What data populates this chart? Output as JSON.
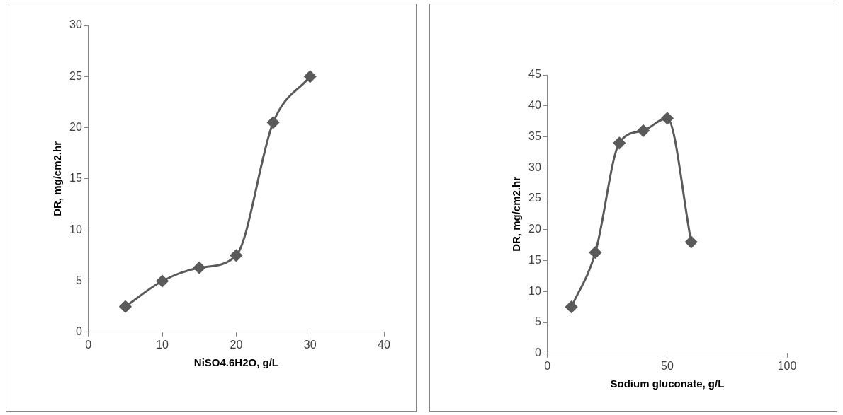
{
  "chart_data": [
    {
      "type": "line",
      "xlabel": "NiSO4.6H2O, g/L",
      "ylabel": "DR, mg/cm2.hr",
      "x": [
        5,
        10,
        15,
        20,
        25,
        30
      ],
      "series": [
        {
          "color": "#5a5a5a",
          "values": [
            2.5,
            5,
            6.3,
            7.5,
            20.5,
            25
          ]
        }
      ],
      "xlim": [
        0,
        40
      ],
      "xticks": [
        0,
        10,
        20,
        30,
        40
      ],
      "ylim": [
        0,
        30
      ],
      "yticks": [
        0,
        5,
        10,
        15,
        20,
        25,
        30
      ],
      "marker": "diamond",
      "grid": false,
      "legend": false
    },
    {
      "type": "line",
      "xlabel": "Sodium gluconate, g/L",
      "ylabel": "DR, mg/cm2.hr",
      "x": [
        10,
        20,
        30,
        40,
        50,
        60
      ],
      "series": [
        {
          "color": "#5a5a5a",
          "values": [
            7.5,
            16.3,
            34,
            36,
            38,
            18
          ]
        }
      ],
      "xlim": [
        0,
        100
      ],
      "xticks": [
        0,
        50,
        100
      ],
      "ylim": [
        0,
        45
      ],
      "yticks": [
        0,
        5,
        10,
        15,
        20,
        25,
        30,
        35,
        40,
        45
      ],
      "marker": "diamond",
      "grid": false,
      "legend": false
    }
  ]
}
